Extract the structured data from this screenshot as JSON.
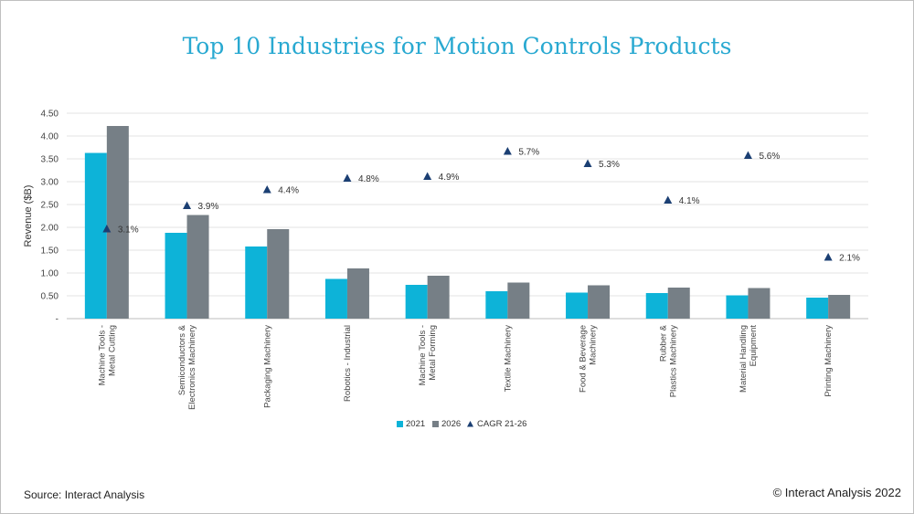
{
  "colors": {
    "title": "#29a9d1",
    "s2021": "#0db3d8",
    "s2026": "#767f86",
    "cagr": "#1b3f73",
    "grid": "#e3e3e3"
  },
  "footer": {
    "source": "Source: Interact Analysis",
    "copyright": "© Interact Analysis 2022"
  },
  "chart_data": {
    "type": "bar",
    "title": "Top 10 Industries for Motion Controls Products",
    "ylabel": "Revenue ($B)",
    "ylim": [
      0,
      4.5
    ],
    "yticks": [
      "-",
      "0.50",
      "1.00",
      "1.50",
      "2.00",
      "2.50",
      "3.00",
      "3.50",
      "4.00",
      "4.50"
    ],
    "ytick_values": [
      0,
      0.5,
      1.0,
      1.5,
      2.0,
      2.5,
      3.0,
      3.5,
      4.0,
      4.5
    ],
    "grid": true,
    "legend_position": "bottom",
    "categories": [
      [
        "Machine Tools -",
        "Metal Cutting"
      ],
      [
        "Semiconductors &",
        "Electronics Machinery"
      ],
      [
        "Packaging Machinery"
      ],
      [
        "Robotics - Industrial"
      ],
      [
        "Machine Tools -",
        "Metal Forming"
      ],
      [
        "Textile Machinery"
      ],
      [
        "Food & Beverage",
        "Machinery"
      ],
      [
        "Rubber &",
        "Plastics Machinery"
      ],
      [
        "Material Handling",
        "Equipment"
      ],
      [
        "Printing Machinery"
      ]
    ],
    "series": [
      {
        "name": "2021",
        "values": [
          3.63,
          1.88,
          1.58,
          0.87,
          0.74,
          0.6,
          0.57,
          0.56,
          0.51,
          0.46
        ]
      },
      {
        "name": "2026",
        "values": [
          4.22,
          2.27,
          1.96,
          1.1,
          0.94,
          0.79,
          0.73,
          0.68,
          0.67,
          0.52
        ]
      }
    ],
    "cagr": {
      "name": "CAGR 21-26",
      "labels": [
        "3.1%",
        "3.9%",
        "4.4%",
        "4.8%",
        "4.9%",
        "5.7%",
        "5.3%",
        "4.1%",
        "5.6%",
        "2.1%"
      ],
      "positions": [
        1.97,
        2.48,
        2.83,
        3.08,
        3.12,
        3.67,
        3.4,
        2.6,
        3.58,
        1.35
      ]
    }
  }
}
